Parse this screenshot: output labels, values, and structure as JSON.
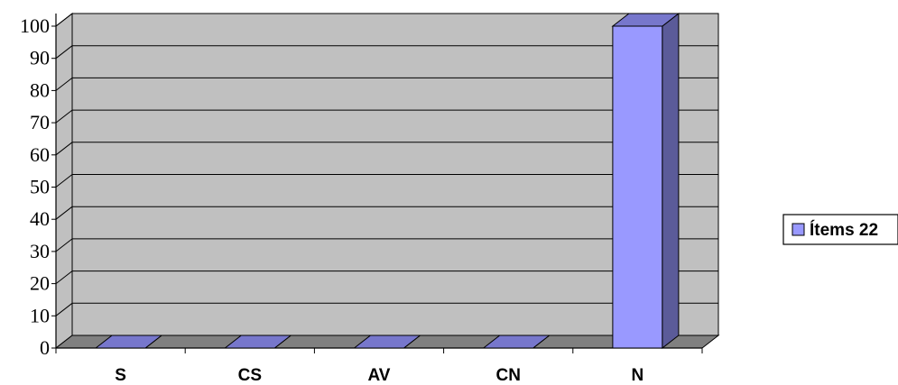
{
  "chart_data": {
    "type": "bar",
    "categories": [
      "S",
      "CS",
      "AV",
      "CN",
      "N"
    ],
    "series": [
      {
        "name": "Ítems 22",
        "values": [
          0,
          0,
          0,
          0,
          100
        ]
      }
    ],
    "ylim": [
      0,
      100
    ],
    "yticks": [
      0,
      10,
      20,
      30,
      40,
      50,
      60,
      70,
      80,
      90,
      100
    ],
    "grid": true,
    "legend_position": "right",
    "colors": {
      "bar_front": "#9999ff",
      "bar_side": "#5b5b99",
      "bar_top": "#7777cc",
      "wall": "#c0c0c0",
      "floor": "#808080"
    }
  }
}
